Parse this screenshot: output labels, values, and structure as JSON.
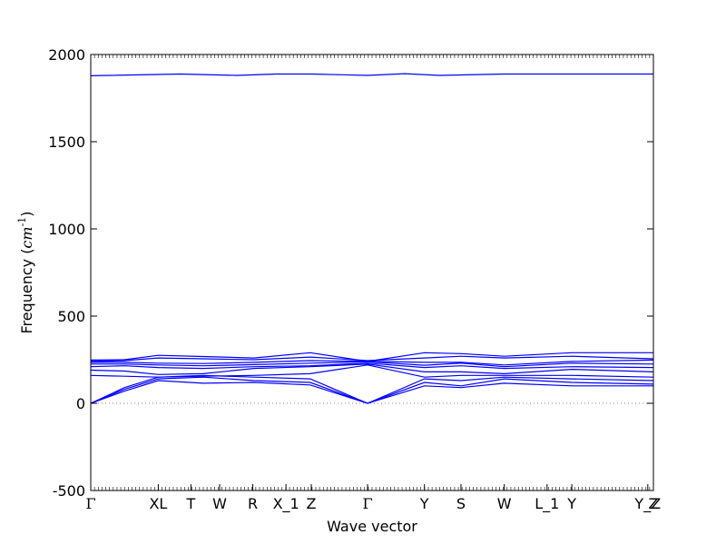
{
  "chart_data": {
    "type": "line",
    "title": "",
    "xlabel": "Wave vector",
    "ylabel": "Frequency ($cm^{-1}$)",
    "ylim": [
      -500,
      2000
    ],
    "yticks": [
      -500,
      0,
      500,
      1000,
      1500,
      2000
    ],
    "xlim": [
      0,
      1
    ],
    "xticks": [
      {
        "pos": 0.0,
        "label": "Γ"
      },
      {
        "pos": 0.12,
        "label": "XL"
      },
      {
        "pos": 0.178,
        "label": "T"
      },
      {
        "pos": 0.229,
        "label": "W"
      },
      {
        "pos": 0.288,
        "label": "R"
      },
      {
        "pos": 0.347,
        "label": "X_1"
      },
      {
        "pos": 0.392,
        "label": "Z"
      },
      {
        "pos": 0.492,
        "label": "Γ"
      },
      {
        "pos": 0.593,
        "label": "Y"
      },
      {
        "pos": 0.658,
        "label": "S"
      },
      {
        "pos": 0.735,
        "label": "W"
      },
      {
        "pos": 0.811,
        "label": "L_1"
      },
      {
        "pos": 0.855,
        "label": "Y"
      },
      {
        "pos": 0.99,
        "label": "Y_Z"
      },
      {
        "pos": 1.0,
        "label": "Z"
      }
    ],
    "zero_line": {
      "y": 0,
      "style": "dotted",
      "color": "#808080"
    },
    "grid": false,
    "line_color": "#0000ff",
    "series": [
      {
        "x": [
          0,
          0.16,
          0.26,
          0.33,
          0.392,
          0.492,
          0.558,
          0.62,
          0.735,
          0.811,
          0.855,
          1
        ],
        "values": [
          1878,
          1888,
          1880,
          1888,
          1888,
          1880,
          1890,
          1880,
          1888,
          1888,
          1888,
          1888
        ]
      },
      {
        "x": [
          0,
          0.06,
          0.12,
          0.2,
          0.29,
          0.39,
          0.492,
          0.593,
          0.658,
          0.735,
          0.855,
          1
        ],
        "values": [
          248,
          250,
          275,
          268,
          260,
          290,
          240,
          290,
          285,
          270,
          290,
          290
        ]
      },
      {
        "x": [
          0,
          0.06,
          0.12,
          0.2,
          0.29,
          0.39,
          0.492,
          0.593,
          0.658,
          0.735,
          0.855,
          1
        ],
        "values": [
          240,
          245,
          260,
          255,
          250,
          265,
          245,
          260,
          270,
          260,
          270,
          255
        ]
      },
      {
        "x": [
          0,
          0.06,
          0.12,
          0.2,
          0.29,
          0.39,
          0.492,
          0.593,
          0.658,
          0.735,
          0.855,
          1
        ],
        "values": [
          235,
          235,
          230,
          228,
          235,
          245,
          240,
          235,
          235,
          220,
          240,
          248
        ]
      },
      {
        "x": [
          0,
          0.06,
          0.12,
          0.2,
          0.29,
          0.39,
          0.492,
          0.593,
          0.658,
          0.735,
          0.855,
          1
        ],
        "values": [
          225,
          225,
          220,
          215,
          222,
          230,
          238,
          218,
          230,
          210,
          230,
          225
        ]
      },
      {
        "x": [
          0,
          0.06,
          0.12,
          0.2,
          0.29,
          0.39,
          0.492,
          0.593,
          0.658,
          0.735,
          0.855,
          1
        ],
        "values": [
          210,
          215,
          205,
          200,
          210,
          215,
          230,
          205,
          215,
          200,
          210,
          205
        ]
      },
      {
        "x": [
          0,
          0.06,
          0.12,
          0.2,
          0.29,
          0.39,
          0.492,
          0.593,
          0.658,
          0.735,
          0.855,
          1
        ],
        "values": [
          190,
          185,
          165,
          170,
          200,
          210,
          225,
          180,
          180,
          170,
          195,
          180
        ]
      },
      {
        "x": [
          0,
          0.06,
          0.12,
          0.2,
          0.29,
          0.39,
          0.492,
          0.593,
          0.658,
          0.735,
          0.855,
          1
        ],
        "values": [
          160,
          155,
          150,
          155,
          160,
          170,
          220,
          150,
          160,
          160,
          160,
          150
        ]
      },
      {
        "x": [
          0,
          0.06,
          0.12,
          0.2,
          0.29,
          0.39,
          0.492,
          0.593,
          0.658,
          0.735,
          0.855,
          1
        ],
        "values": [
          0,
          90,
          150,
          160,
          150,
          140,
          0,
          140,
          130,
          150,
          140,
          130
        ]
      },
      {
        "x": [
          0,
          0.06,
          0.12,
          0.2,
          0.29,
          0.39,
          0.492,
          0.593,
          0.658,
          0.735,
          0.855,
          1
        ],
        "values": [
          0,
          80,
          140,
          150,
          130,
          120,
          0,
          120,
          100,
          140,
          120,
          110
        ]
      },
      {
        "x": [
          0,
          0.06,
          0.12,
          0.2,
          0.29,
          0.39,
          0.492,
          0.593,
          0.658,
          0.735,
          0.855,
          1
        ],
        "values": [
          0,
          70,
          130,
          115,
          120,
          105,
          0,
          100,
          90,
          115,
          100,
          100
        ]
      }
    ]
  }
}
